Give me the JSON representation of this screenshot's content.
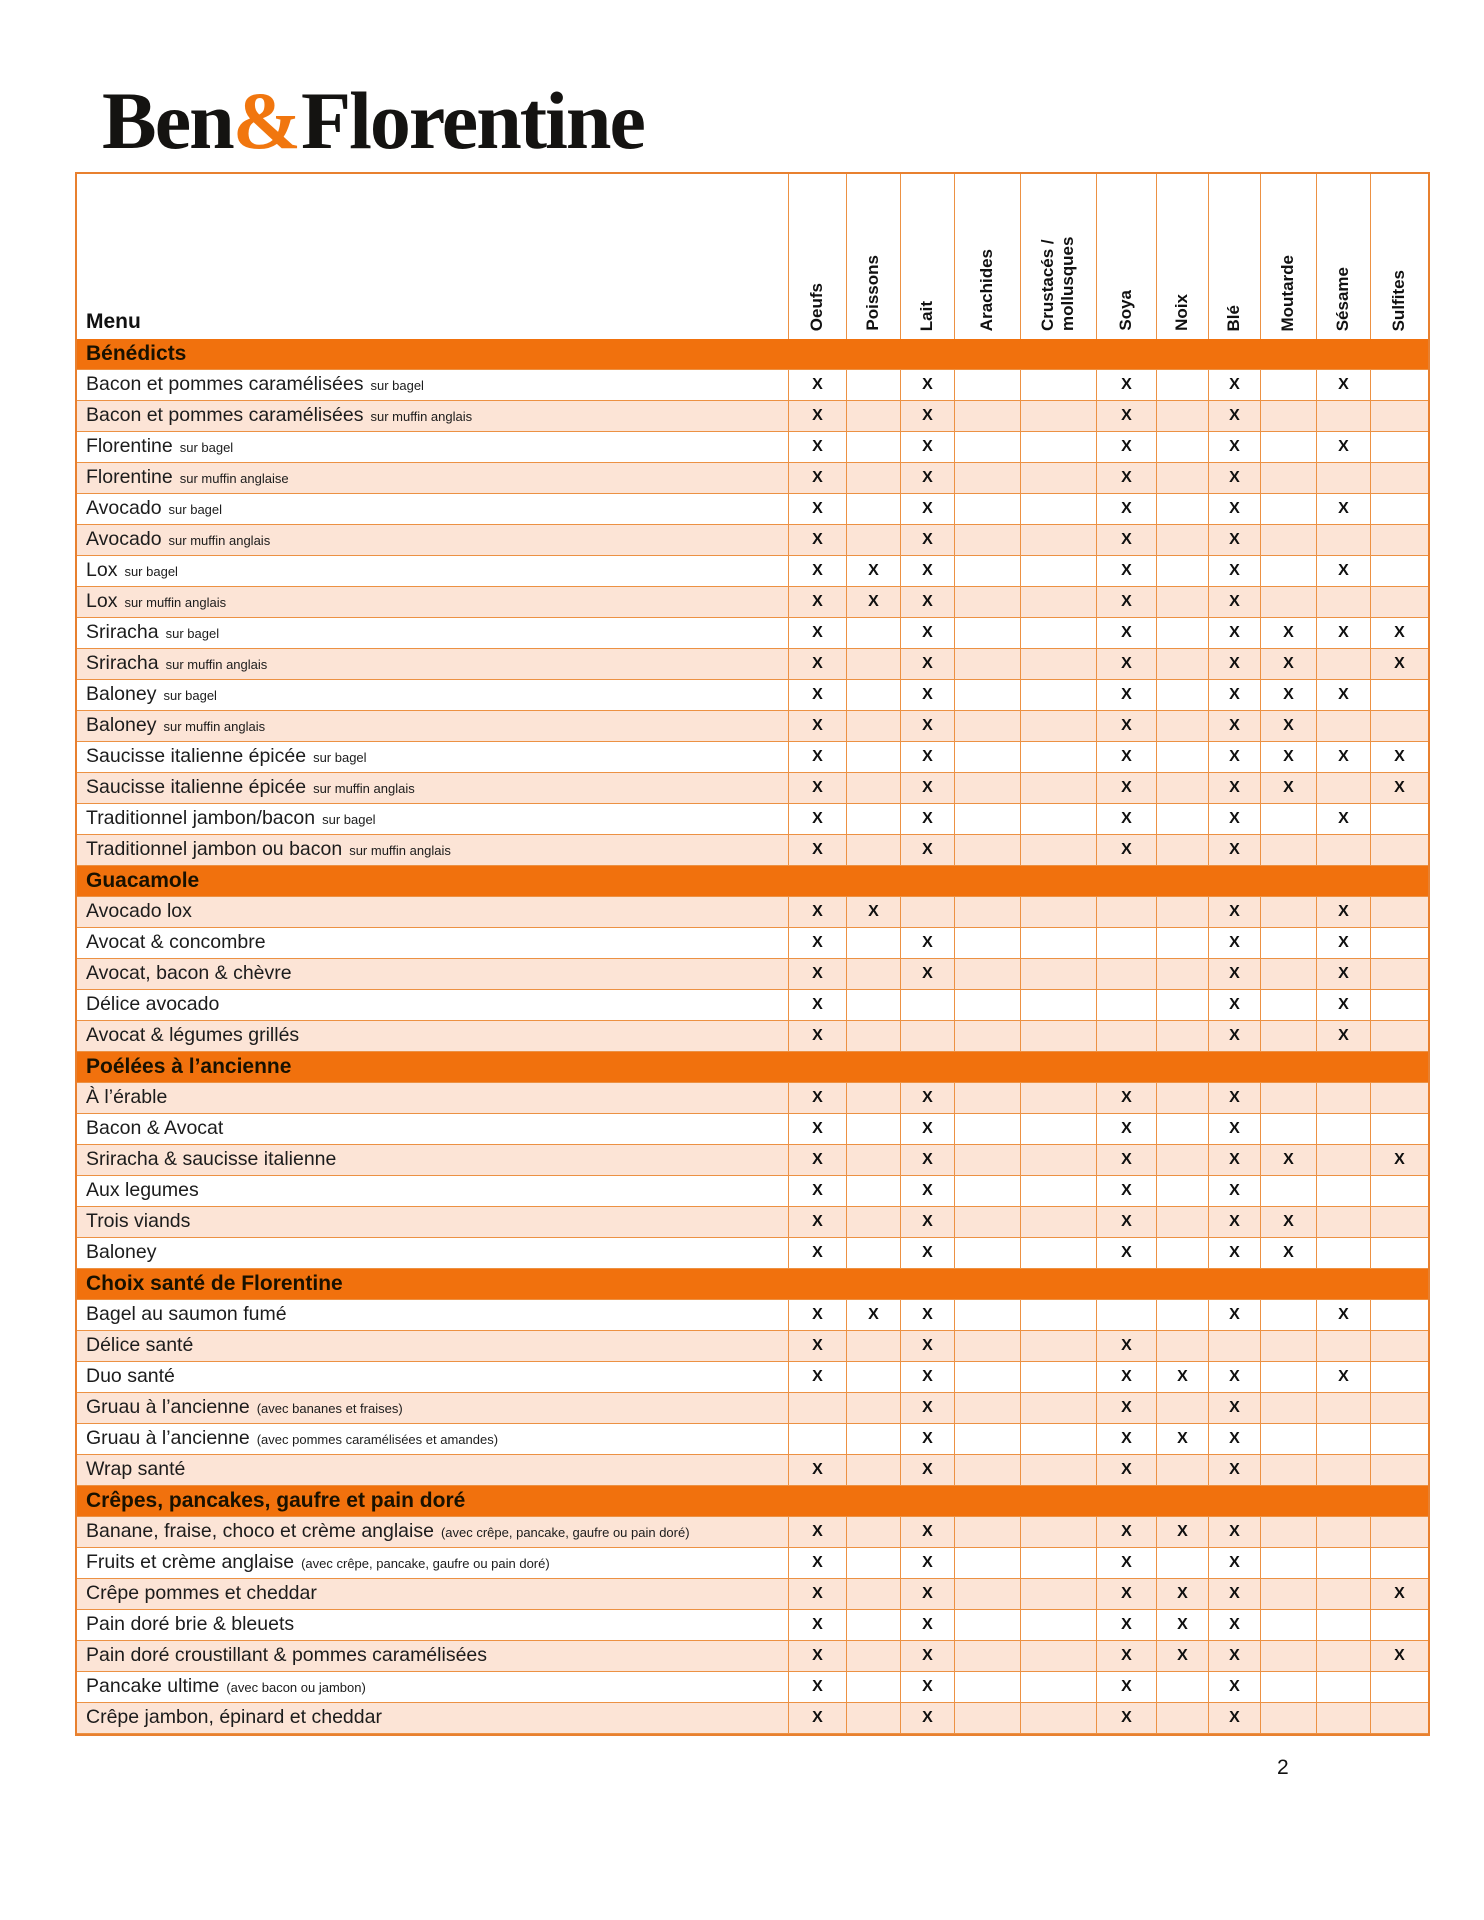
{
  "logo": {
    "ben": "Ben",
    "amp": "&",
    "florentine": "Florentine"
  },
  "page_number": "2",
  "colors": {
    "accent_orange": "#F1710D",
    "logo_ampersand_orange": "#F1760E",
    "shaded_row": "#FCE4D6",
    "grid_border": "#EC9143",
    "text": "#1c1c1c"
  },
  "table": {
    "menu_header": "Menu",
    "mark": "X",
    "columns": [
      "Oeufs",
      "Poissons",
      "Lait",
      "Arachides",
      "Crustacés / mollusques",
      "Soya",
      "Noix",
      "Blé",
      "Moutarde",
      "Sésame",
      "Sulfites"
    ],
    "sections": [
      {
        "title": "Bénédicts",
        "first_row_shaded": false,
        "rows": [
          {
            "name": "Bacon et pommes caramélisées",
            "sub": "sur bagel",
            "allergens": [
              "Oeufs",
              "Lait",
              "Soya",
              "Blé",
              "Sésame"
            ]
          },
          {
            "name": "Bacon et pommes caramélisées",
            "sub": "sur muffin anglais",
            "allergens": [
              "Oeufs",
              "Lait",
              "Soya",
              "Blé"
            ]
          },
          {
            "name": "Florentine",
            "sub": "sur bagel",
            "allergens": [
              "Oeufs",
              "Lait",
              "Soya",
              "Blé",
              "Sésame"
            ]
          },
          {
            "name": "Florentine",
            "sub": "sur muffin anglaise",
            "allergens": [
              "Oeufs",
              "Lait",
              "Soya",
              "Blé"
            ]
          },
          {
            "name": "Avocado",
            "sub": "sur bagel",
            "allergens": [
              "Oeufs",
              "Lait",
              "Soya",
              "Blé",
              "Sésame"
            ]
          },
          {
            "name": "Avocado",
            "sub": "sur muffin anglais",
            "allergens": [
              "Oeufs",
              "Lait",
              "Soya",
              "Blé"
            ]
          },
          {
            "name": "Lox",
            "sub": "sur bagel",
            "allergens": [
              "Oeufs",
              "Poissons",
              "Lait",
              "Soya",
              "Blé",
              "Sésame"
            ]
          },
          {
            "name": "Lox",
            "sub": "sur muffin anglais",
            "allergens": [
              "Oeufs",
              "Poissons",
              "Lait",
              "Soya",
              "Blé"
            ]
          },
          {
            "name": "Sriracha",
            "sub": "sur bagel",
            "allergens": [
              "Oeufs",
              "Lait",
              "Soya",
              "Blé",
              "Moutarde",
              "Sésame",
              "Sulfites"
            ]
          },
          {
            "name": "Sriracha",
            "sub": "sur muffin anglais",
            "allergens": [
              "Oeufs",
              "Lait",
              "Soya",
              "Blé",
              "Moutarde",
              "Sulfites"
            ]
          },
          {
            "name": "Baloney",
            "sub": "sur bagel",
            "allergens": [
              "Oeufs",
              "Lait",
              "Soya",
              "Blé",
              "Moutarde",
              "Sésame"
            ]
          },
          {
            "name": "Baloney",
            "sub": "sur muffin anglais",
            "allergens": [
              "Oeufs",
              "Lait",
              "Soya",
              "Blé",
              "Moutarde"
            ]
          },
          {
            "name": "Saucisse italienne épicée",
            "sub": "sur bagel",
            "allergens": [
              "Oeufs",
              "Lait",
              "Soya",
              "Blé",
              "Moutarde",
              "Sésame",
              "Sulfites"
            ]
          },
          {
            "name": "Saucisse italienne épicée",
            "sub": "sur muffin anglais",
            "allergens": [
              "Oeufs",
              "Lait",
              "Soya",
              "Blé",
              "Moutarde",
              "Sulfites"
            ]
          },
          {
            "name": "Traditionnel jambon/bacon",
            "sub": "sur bagel",
            "allergens": [
              "Oeufs",
              "Lait",
              "Soya",
              "Blé",
              "Sésame"
            ]
          },
          {
            "name": "Traditionnel jambon ou bacon",
            "sub": "sur muffin anglais",
            "allergens": [
              "Oeufs",
              "Lait",
              "Soya",
              "Blé"
            ]
          }
        ]
      },
      {
        "title": "Guacamole",
        "first_row_shaded": true,
        "rows": [
          {
            "name": "Avocado lox",
            "sub": "",
            "allergens": [
              "Oeufs",
              "Poissons",
              "Blé",
              "Sésame"
            ]
          },
          {
            "name": "Avocat & concombre",
            "sub": "",
            "allergens": [
              "Oeufs",
              "Lait",
              "Blé",
              "Sésame"
            ]
          },
          {
            "name": "Avocat, bacon & chèvre",
            "sub": "",
            "allergens": [
              "Oeufs",
              "Lait",
              "Blé",
              "Sésame"
            ]
          },
          {
            "name": "Délice avocado",
            "sub": "",
            "allergens": [
              "Oeufs",
              "Blé",
              "Sésame"
            ]
          },
          {
            "name": "Avocat & légumes grillés",
            "sub": "",
            "allergens": [
              "Oeufs",
              "Blé",
              "Sésame"
            ]
          }
        ]
      },
      {
        "title": "Poélées à l’ancienne",
        "first_row_shaded": true,
        "rows": [
          {
            "name": "À l’érable",
            "sub": "",
            "allergens": [
              "Oeufs",
              "Lait",
              "Soya",
              "Blé"
            ]
          },
          {
            "name": "Bacon & Avocat",
            "sub": "",
            "allergens": [
              "Oeufs",
              "Lait",
              "Soya",
              "Blé"
            ]
          },
          {
            "name": "Sriracha & saucisse italienne",
            "sub": "",
            "allergens": [
              "Oeufs",
              "Lait",
              "Soya",
              "Blé",
              "Moutarde",
              "Sulfites"
            ]
          },
          {
            "name": "Aux legumes",
            "sub": "",
            "allergens": [
              "Oeufs",
              "Lait",
              "Soya",
              "Blé"
            ]
          },
          {
            "name": "Trois viands",
            "sub": "",
            "allergens": [
              "Oeufs",
              "Lait",
              "Soya",
              "Blé",
              "Moutarde"
            ]
          },
          {
            "name": "Baloney",
            "sub": "",
            "allergens": [
              "Oeufs",
              "Lait",
              "Soya",
              "Blé",
              "Moutarde"
            ]
          }
        ]
      },
      {
        "title": "Choix santé de Florentine",
        "first_row_shaded": false,
        "rows": [
          {
            "name": "Bagel au saumon fumé",
            "sub": "",
            "allergens": [
              "Oeufs",
              "Poissons",
              "Lait",
              "Blé",
              "Sésame"
            ]
          },
          {
            "name": "Délice santé",
            "sub": "",
            "allergens": [
              "Oeufs",
              "Lait",
              "Soya"
            ]
          },
          {
            "name": "Duo santé",
            "sub": "",
            "allergens": [
              "Oeufs",
              "Lait",
              "Soya",
              "Noix",
              "Blé",
              "Sésame"
            ]
          },
          {
            "name": "Gruau à l’ancienne",
            "sub": "(avec bananes et fraises)",
            "allergens": [
              "Lait",
              "Soya",
              "Blé"
            ]
          },
          {
            "name": "Gruau à l’ancienne",
            "sub": "(avec pommes caramélisées et amandes)",
            "allergens": [
              "Lait",
              "Soya",
              "Noix",
              "Blé"
            ]
          },
          {
            "name": "Wrap santé",
            "sub": "",
            "allergens": [
              "Oeufs",
              "Lait",
              "Soya",
              "Blé"
            ]
          }
        ]
      },
      {
        "title": "Crêpes, pancakes, gaufre et pain doré",
        "first_row_shaded": true,
        "rows": [
          {
            "name": "Banane, fraise, choco et crème anglaise",
            "sub": "(avec crêpe, pancake, gaufre ou pain doré)",
            "allergens": [
              "Oeufs",
              "Lait",
              "Soya",
              "Noix",
              "Blé"
            ]
          },
          {
            "name": "Fruits et crème anglaise",
            "sub": "(avec crêpe, pancake, gaufre ou pain doré)",
            "allergens": [
              "Oeufs",
              "Lait",
              "Soya",
              "Blé"
            ]
          },
          {
            "name": "Crêpe pommes et cheddar",
            "sub": "",
            "allergens": [
              "Oeufs",
              "Lait",
              "Soya",
              "Noix",
              "Blé",
              "Sulfites"
            ]
          },
          {
            "name": "Pain doré brie & bleuets",
            "sub": "",
            "allergens": [
              "Oeufs",
              "Lait",
              "Soya",
              "Noix",
              "Blé"
            ]
          },
          {
            "name": "Pain doré croustillant & pommes caramélisées",
            "sub": "",
            "allergens": [
              "Oeufs",
              "Lait",
              "Soya",
              "Noix",
              "Blé",
              "Sulfites"
            ]
          },
          {
            "name": "Pancake ultime",
            "sub": "(avec bacon ou jambon)",
            "allergens": [
              "Oeufs",
              "Lait",
              "Soya",
              "Blé"
            ]
          },
          {
            "name": "Crêpe jambon, épinard et cheddar",
            "sub": "",
            "allergens": [
              "Oeufs",
              "Lait",
              "Soya",
              "Blé"
            ]
          }
        ]
      }
    ]
  }
}
